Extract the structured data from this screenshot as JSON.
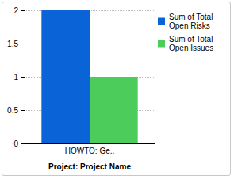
{
  "chart_data": {
    "type": "bar",
    "categories": [
      "HOWTO: Ge.."
    ],
    "x_label": "Project: Project Name",
    "series": [
      {
        "name": "Sum of Total Open Risks",
        "color": "#0a64d8",
        "values": [
          2
        ]
      },
      {
        "name": "Sum of Total Open Issues",
        "color": "#4ccc5a",
        "values": [
          1
        ]
      }
    ],
    "ylim": [
      0,
      2
    ],
    "yticks": [
      0,
      0.5,
      1,
      1.5,
      2
    ],
    "grid": true,
    "legend": "right"
  }
}
